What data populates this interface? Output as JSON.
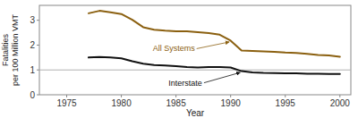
{
  "chart_data": {
    "type": "line",
    "xlabel": "Year",
    "ylabel": "Fatalities\nper 100 Million VMT",
    "x": [
      1977,
      1978,
      1979,
      1980,
      1981,
      1982,
      1983,
      1984,
      1985,
      1986,
      1987,
      1988,
      1989,
      1990,
      1991,
      1992,
      1993,
      1994,
      1995,
      1996,
      1997,
      1998,
      1999,
      2000
    ],
    "series": [
      {
        "name": "All Systems",
        "color": "#8B6010",
        "values": [
          3.28,
          3.38,
          3.32,
          3.25,
          3.02,
          2.72,
          2.62,
          2.58,
          2.56,
          2.56,
          2.52,
          2.48,
          2.42,
          2.18,
          1.78,
          1.76,
          1.75,
          1.73,
          1.7,
          1.68,
          1.65,
          1.6,
          1.58,
          1.53
        ]
      },
      {
        "name": "Interstate",
        "color": "#111111",
        "values": [
          1.5,
          1.52,
          1.5,
          1.47,
          1.35,
          1.25,
          1.2,
          1.18,
          1.15,
          1.12,
          1.1,
          1.12,
          1.12,
          1.1,
          0.95,
          0.9,
          0.88,
          0.87,
          0.86,
          0.86,
          0.85,
          0.85,
          0.84,
          0.84
        ]
      }
    ],
    "hline": 1.0,
    "xlim": [
      1972.5,
      2001.0
    ],
    "ylim": [
      0,
      3.6
    ],
    "xticks": [
      1975,
      1980,
      1985,
      1990,
      1995,
      2000
    ],
    "yticks": [
      0,
      1,
      2,
      3
    ],
    "grid": false
  }
}
